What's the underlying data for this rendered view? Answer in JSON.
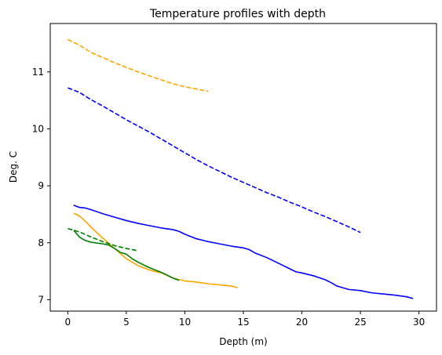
{
  "chart_data": {
    "type": "line",
    "title": "Temperature profiles with depth",
    "xlabel": "Depth (m)",
    "ylabel": "Deg. C",
    "xlim": [
      -1.5,
      31.5
    ],
    "ylim": [
      6.8,
      11.85
    ],
    "xticks": [
      0,
      5,
      10,
      15,
      20,
      25,
      30
    ],
    "yticks": [
      7,
      8,
      9,
      10,
      11
    ],
    "xtick_labels": [
      "0",
      "5",
      "10",
      "15",
      "20",
      "25",
      "30"
    ],
    "ytick_labels": [
      "7",
      "8",
      "9",
      "10",
      "11"
    ],
    "grid": false,
    "series": [
      {
        "color": "#0000ff",
        "style": "solid",
        "x": [
          0.5,
          1,
          1.5,
          2,
          3,
          4,
          5,
          6,
          7,
          8,
          9,
          9.5,
          10,
          11,
          12,
          13,
          14,
          15,
          15.5,
          16,
          17,
          18,
          19,
          19.5,
          20,
          21,
          22,
          22.5,
          23,
          24,
          25,
          26,
          27,
          28,
          29,
          29.5
        ],
        "y": [
          8.66,
          8.62,
          8.61,
          8.58,
          8.51,
          8.45,
          8.39,
          8.34,
          8.3,
          8.26,
          8.23,
          8.2,
          8.15,
          8.07,
          8.02,
          7.98,
          7.94,
          7.91,
          7.88,
          7.82,
          7.74,
          7.64,
          7.54,
          7.49,
          7.47,
          7.42,
          7.35,
          7.3,
          7.24,
          7.18,
          7.16,
          7.12,
          7.1,
          7.08,
          7.05,
          7.02
        ]
      },
      {
        "color": "#0000ff",
        "style": "dashed",
        "x": [
          0,
          1,
          2,
          3,
          4,
          5,
          6,
          7,
          8,
          9,
          10,
          11,
          12,
          13,
          14,
          15,
          16,
          17,
          18,
          19,
          20,
          21,
          22,
          23,
          24,
          25
        ],
        "y": [
          10.72,
          10.64,
          10.51,
          10.4,
          10.28,
          10.16,
          10.05,
          9.94,
          9.82,
          9.7,
          9.58,
          9.46,
          9.35,
          9.25,
          9.15,
          9.06,
          8.97,
          8.88,
          8.8,
          8.71,
          8.63,
          8.54,
          8.46,
          8.37,
          8.28,
          8.18
        ]
      },
      {
        "color": "#ffa500",
        "style": "solid",
        "x": [
          0.5,
          1,
          1.5,
          2,
          3,
          4,
          5,
          6,
          7,
          8,
          9,
          10,
          11,
          12,
          13,
          14,
          14.5
        ],
        "y": [
          8.52,
          8.47,
          8.38,
          8.27,
          8.08,
          7.9,
          7.72,
          7.6,
          7.52,
          7.47,
          7.38,
          7.33,
          7.31,
          7.28,
          7.26,
          7.24,
          7.21
        ]
      },
      {
        "color": "#ffa500",
        "style": "dashed",
        "x": [
          0,
          1,
          2,
          3,
          4,
          5,
          6,
          7,
          8,
          9,
          10,
          11,
          12
        ],
        "y": [
          11.57,
          11.47,
          11.34,
          11.25,
          11.16,
          11.08,
          11.0,
          10.93,
          10.86,
          10.79,
          10.74,
          10.7,
          10.66
        ]
      },
      {
        "color": "#008000",
        "style": "solid",
        "x": [
          0.5,
          1,
          1.5,
          2,
          3,
          3.5,
          4,
          4.5,
          5,
          5.5,
          6,
          7,
          8,
          9,
          9.5
        ],
        "y": [
          8.22,
          8.1,
          8.04,
          8.01,
          7.98,
          7.96,
          7.9,
          7.83,
          7.8,
          7.72,
          7.66,
          7.56,
          7.48,
          7.38,
          7.34
        ]
      },
      {
        "color": "#008000",
        "style": "dashed",
        "x": [
          0,
          1,
          2,
          3,
          4,
          5,
          6
        ],
        "y": [
          8.25,
          8.19,
          8.1,
          8.02,
          7.95,
          7.9,
          7.86
        ]
      }
    ]
  }
}
